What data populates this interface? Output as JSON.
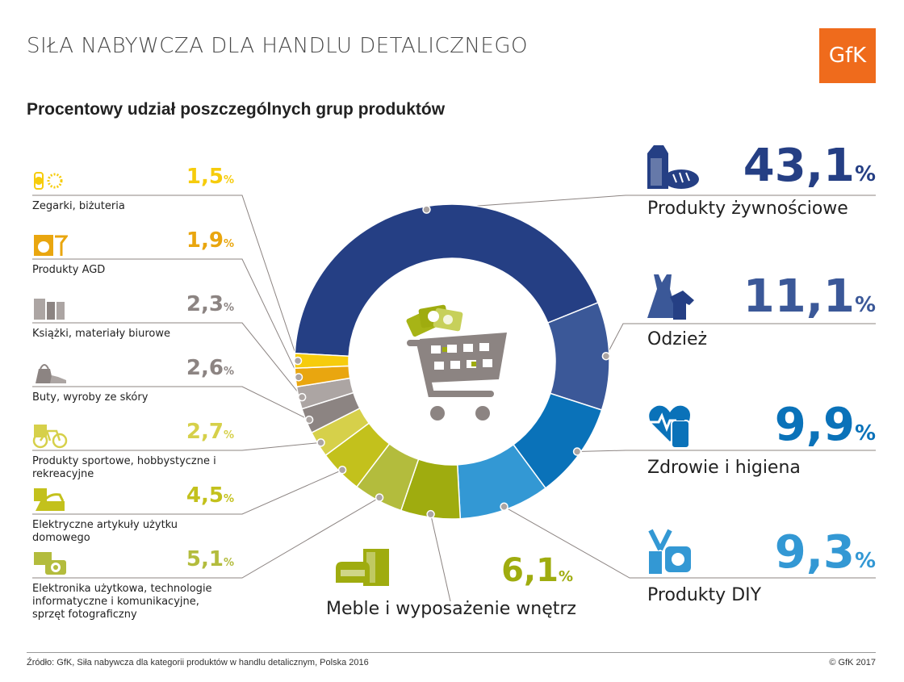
{
  "header": {
    "title": "SIŁA NABYWCZA DLA HANDLU DETALICZNEGO",
    "logo_text": "GfK",
    "subtitle": "Procentowy udział poszczególnych grup produktów"
  },
  "colors": {
    "food": "#253f84",
    "clothing": "#3b5898",
    "health": "#0a72b9",
    "diy": "#3398d4",
    "furniture": "#9fac0f",
    "electronics": "#b3bc3d",
    "electrical": "#c3c11c",
    "sport": "#d6d04a",
    "shoes": "#8c8482",
    "books": "#aca5a3",
    "agd": "#e9a60f",
    "watches": "#f6cc0c"
  },
  "chart_data": {
    "type": "pie",
    "donut": true,
    "start": "top-left, clockwise",
    "slices": [
      {
        "label": "Produkty żywnościowe",
        "value": 43.1,
        "display": "43,1",
        "color_key": "food"
      },
      {
        "label": "Odzież",
        "value": 11.1,
        "display": "11,1",
        "color_key": "clothing"
      },
      {
        "label": "Zdrowie i higiena",
        "value": 9.9,
        "display": "9,9",
        "color_key": "health"
      },
      {
        "label": "Produkty DIY",
        "value": 9.3,
        "display": "9,3",
        "color_key": "diy"
      },
      {
        "label": "Meble i wyposażenie wnętrz",
        "value": 6.1,
        "display": "6,1",
        "color_key": "furniture"
      },
      {
        "label": "Elektronika użytkowa, technologie informatyczne i komunikacyjne, sprzęt fotograficzny",
        "value": 5.1,
        "display": "5,1",
        "color_key": "electronics"
      },
      {
        "label": "Elektryczne artykuły użytku domowego",
        "value": 4.5,
        "display": "4,5",
        "color_key": "electrical"
      },
      {
        "label": "Produkty sportowe, hobbystyczne i rekreacyjne",
        "value": 2.7,
        "display": "2,7",
        "color_key": "sport"
      },
      {
        "label": "Buty, wyroby ze skóry",
        "value": 2.6,
        "display": "2,6",
        "color_key": "shoes"
      },
      {
        "label": "Książki, materiały biurowe",
        "value": 2.3,
        "display": "2,3",
        "color_key": "books"
      },
      {
        "label": "Produkty AGD",
        "value": 1.9,
        "display": "1,9",
        "color_key": "agd"
      },
      {
        "label": "Zegarki, biżuteria",
        "value": 1.5,
        "display": "1,5",
        "color_key": "watches"
      }
    ],
    "unit": "%"
  },
  "footer": {
    "source": "Źródło: GfK, Siła nabywcza dla kategorii produktów w handlu detalicznym, Polska 2016",
    "copyright": "© GfK 2017"
  }
}
